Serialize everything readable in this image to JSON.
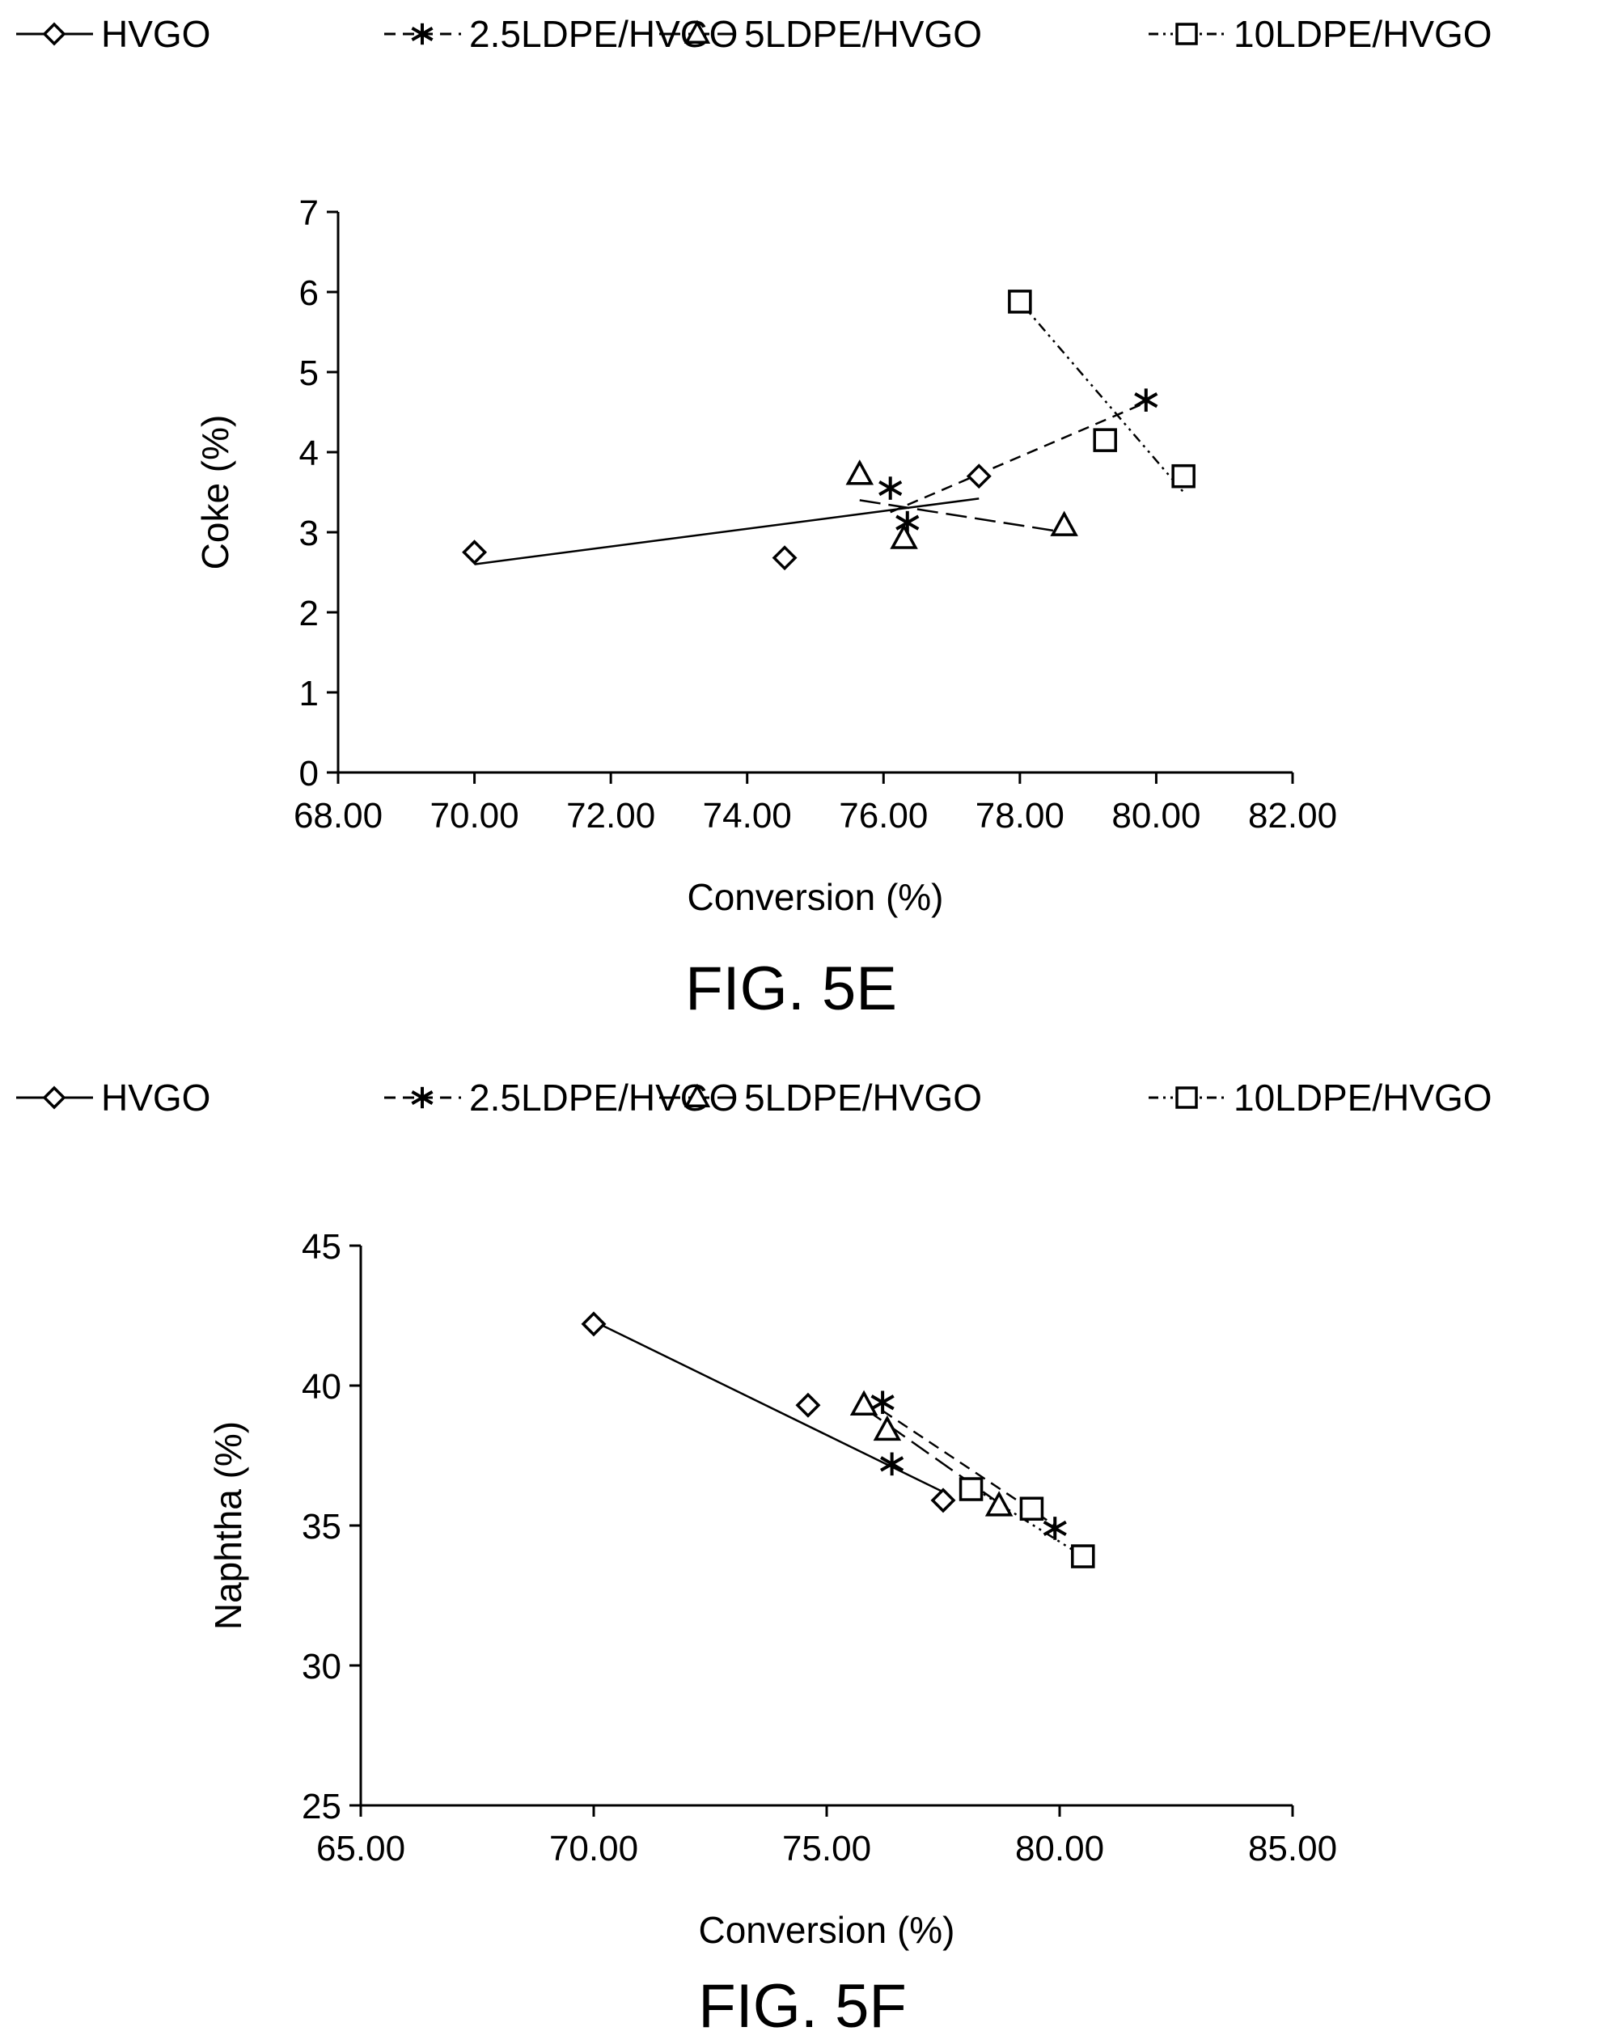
{
  "chart_data": [
    {
      "type": "scatter",
      "caption": "FIG. 5E",
      "xlabel": "Conversion (%)",
      "ylabel": "Coke (%)",
      "xlim": [
        68,
        82
      ],
      "ylim": [
        0,
        7
      ],
      "xticks": [
        "68.00",
        "70.00",
        "72.00",
        "74.00",
        "76.00",
        "78.00",
        "80.00",
        "82.00"
      ],
      "yticks": [
        "0",
        "1",
        "2",
        "3",
        "4",
        "5",
        "6",
        "7"
      ],
      "legend_position": "top",
      "series": [
        {
          "name": "HVGO",
          "marker": "diamond",
          "line": "solid",
          "points": [
            [
              70.0,
              2.75
            ],
            [
              74.55,
              2.68
            ],
            [
              77.4,
              3.7
            ]
          ],
          "trendline": [
            [
              70.0,
              2.6
            ],
            [
              77.4,
              3.42
            ]
          ]
        },
        {
          "name": "2.5LDPE/HVGO",
          "marker": "star",
          "line": "dashed",
          "points": [
            [
              76.1,
              3.55
            ],
            [
              76.35,
              3.12
            ],
            [
              79.85,
              4.65
            ]
          ],
          "trendline": [
            [
              76.1,
              3.25
            ],
            [
              79.85,
              4.62
            ]
          ]
        },
        {
          "name": "5LDPE/HVGO",
          "marker": "triangle",
          "line": "longdash",
          "points": [
            [
              75.65,
              3.72
            ],
            [
              76.3,
              2.92
            ],
            [
              78.65,
              3.08
            ]
          ],
          "trendline": [
            [
              75.65,
              3.4
            ],
            [
              78.65,
              3.0
            ]
          ]
        },
        {
          "name": "10LDPE/HVGO",
          "marker": "square",
          "line": "dashdot",
          "points": [
            [
              78.0,
              5.88
            ],
            [
              79.25,
              4.15
            ],
            [
              80.4,
              3.7
            ]
          ],
          "trendline": [
            [
              78.0,
              5.88
            ],
            [
              80.4,
              3.5
            ]
          ]
        }
      ]
    },
    {
      "type": "scatter",
      "caption": "FIG. 5F",
      "xlabel": "Conversion (%)",
      "ylabel": "Naphtha (%)",
      "xlim": [
        65,
        85
      ],
      "ylim": [
        25,
        45
      ],
      "xticks": [
        "65.00",
        "70.00",
        "75.00",
        "80.00",
        "85.00"
      ],
      "yticks": [
        "25",
        "30",
        "35",
        "40",
        "45"
      ],
      "legend_position": "top",
      "series": [
        {
          "name": "HVGO",
          "marker": "diamond",
          "line": "solid",
          "points": [
            [
              70.0,
              42.2
            ],
            [
              74.6,
              39.3
            ],
            [
              77.5,
              35.9
            ]
          ],
          "trendline": [
            [
              70.0,
              42.3
            ],
            [
              77.5,
              36.2
            ]
          ]
        },
        {
          "name": "2.5LDPE/HVGO",
          "marker": "star",
          "line": "dashed",
          "points": [
            [
              76.2,
              39.4
            ],
            [
              76.4,
              37.2
            ],
            [
              79.9,
              34.9
            ]
          ],
          "trendline": [
            [
              76.2,
              39.1
            ],
            [
              79.9,
              35.0
            ]
          ]
        },
        {
          "name": "5LDPE/HVGO",
          "marker": "triangle",
          "line": "longdash",
          "points": [
            [
              75.8,
              39.3
            ],
            [
              76.3,
              38.4
            ],
            [
              78.7,
              35.7
            ]
          ],
          "trendline": [
            [
              75.8,
              39.2
            ],
            [
              78.7,
              35.8
            ]
          ]
        },
        {
          "name": "10LDPE/HVGO",
          "marker": "square",
          "line": "dashdot",
          "points": [
            [
              78.1,
              36.3
            ],
            [
              79.4,
              35.6
            ],
            [
              80.5,
              33.9
            ]
          ],
          "trendline": [
            [
              78.1,
              36.4
            ],
            [
              80.5,
              33.9
            ]
          ]
        }
      ]
    }
  ]
}
